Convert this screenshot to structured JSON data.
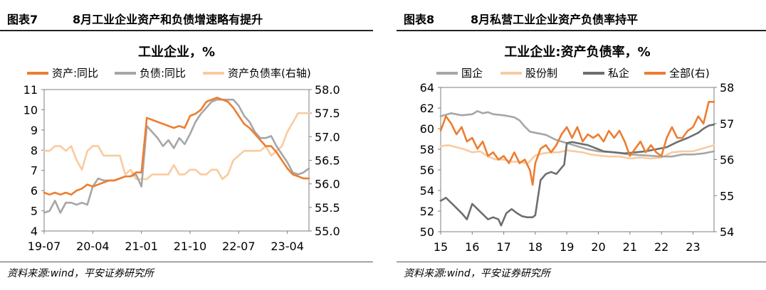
{
  "charts": [
    {
      "figure_label": "图表7",
      "header_title": "8月工业企业资产和负债增速略有提升",
      "source": "资料来源:wind，平安证券研究所",
      "chart_data": {
        "type": "line",
        "title": "工业企业，%",
        "legend": [
          {
            "name": "资产:同比",
            "color": "#ED7D31"
          },
          {
            "name": "负债:同比",
            "color": "#A6A6A6"
          },
          {
            "name": "资产负债率(右轴)",
            "color": "#F8CBA0"
          }
        ],
        "legend_placement": "top",
        "ylim": [
          4,
          11
        ],
        "y_ticks": [
          "4",
          "5",
          "6",
          "7",
          "8",
          "9",
          "10",
          "11"
        ],
        "y2lim": [
          55.0,
          58.0
        ],
        "y2_ticks": [
          "55.0",
          "55.5",
          "56.0",
          "56.5",
          "57.0",
          "57.5",
          "58.0"
        ],
        "x_tick_labels": [
          "19-07",
          "20-04",
          "21-01",
          "21-10",
          "22-07",
          "23-04"
        ],
        "x_tick_indices": [
          0,
          9,
          18,
          27,
          36,
          45
        ],
        "x_range": [
          0,
          49
        ],
        "grid": false,
        "series": [
          {
            "name": "资产:同比",
            "axis": "left",
            "color": "#ED7D31",
            "values": [
              5.9,
              5.8,
              5.9,
              5.8,
              5.9,
              5.8,
              6.0,
              6.1,
              6.3,
              6.2,
              6.3,
              6.4,
              6.5,
              6.5,
              6.6,
              6.7,
              6.7,
              6.9,
              6.9,
              9.6,
              9.5,
              9.4,
              9.3,
              9.2,
              9.1,
              9.2,
              9.1,
              9.7,
              9.8,
              10.0,
              10.4,
              10.5,
              10.6,
              10.5,
              10.4,
              10.1,
              9.7,
              9.3,
              9.1,
              8.8,
              8.5,
              8.2,
              8.2,
              7.9,
              7.5,
              7.1,
              6.8,
              6.7,
              6.6,
              6.6
            ]
          },
          {
            "name": "负债:同比",
            "axis": "left",
            "color": "#A6A6A6",
            "values": [
              4.9,
              5.0,
              5.5,
              4.9,
              5.4,
              5.4,
              5.3,
              5.4,
              5.3,
              6.2,
              6.6,
              6.5,
              6.5,
              6.5,
              6.6,
              6.7,
              6.7,
              6.8,
              6.2,
              9.2,
              8.9,
              8.6,
              8.2,
              8.5,
              8.1,
              8.6,
              8.3,
              8.8,
              9.4,
              9.8,
              10.1,
              10.4,
              10.5,
              10.5,
              10.5,
              10.5,
              10.2,
              9.7,
              9.4,
              8.9,
              8.6,
              8.6,
              8.7,
              8.2,
              7.8,
              7.4,
              6.9,
              6.8,
              6.9,
              7.1
            ]
          },
          {
            "name": "资产负债率(右轴)",
            "axis": "right",
            "color": "#F8CBA0",
            "values": [
              56.7,
              56.7,
              56.8,
              56.8,
              56.7,
              56.8,
              56.5,
              56.3,
              56.7,
              56.8,
              56.8,
              56.6,
              56.6,
              56.6,
              56.6,
              56.2,
              56.3,
              56.1,
              56.1,
              56.1,
              56.2,
              56.2,
              56.2,
              56.2,
              56.4,
              56.2,
              56.2,
              56.3,
              56.3,
              56.2,
              56.2,
              56.3,
              56.3,
              56.1,
              56.2,
              56.5,
              56.6,
              56.7,
              56.7,
              56.7,
              56.7,
              56.8,
              56.6,
              56.7,
              56.8,
              57.1,
              57.3,
              57.5,
              57.5,
              57.5
            ]
          }
        ]
      }
    },
    {
      "figure_label": "图表8",
      "header_title": "8月私营工业企业资产负债率持平",
      "source": "资料来源:wind，平安证券研究所",
      "chart_data": {
        "type": "line",
        "title": "工业企业:资产负债率，%",
        "legend": [
          {
            "name": "国企",
            "color": "#A6A6A6"
          },
          {
            "name": "股份制",
            "color": "#F8CBA0"
          },
          {
            "name": "私企",
            "color": "#6E6E6E"
          },
          {
            "name": "全部(右)",
            "color": "#ED7D31"
          }
        ],
        "legend_placement": "top",
        "ylim": [
          50,
          64
        ],
        "y_ticks": [
          "50",
          "52",
          "54",
          "56",
          "58",
          "60",
          "62",
          "64"
        ],
        "y2lim": [
          54,
          58
        ],
        "y2_ticks": [
          "54",
          "55",
          "56",
          "57",
          "58"
        ],
        "x_tick_labels": [
          "15",
          "16",
          "17",
          "18",
          "19",
          "20",
          "21",
          "22",
          "23"
        ],
        "x_tick_indices": [
          0,
          12,
          24,
          36,
          48,
          60,
          72,
          84,
          96
        ],
        "x_range": [
          0,
          104
        ],
        "grid": false,
        "series": [
          {
            "name": "国企",
            "axis": "left",
            "color": "#A6A6A6",
            "values": [
              [
                0,
                61.2
              ],
              [
                4,
                61.5
              ],
              [
                8,
                61.3
              ],
              [
                12,
                61.4
              ],
              [
                14,
                61.7
              ],
              [
                16,
                61.5
              ],
              [
                18,
                61.6
              ],
              [
                20,
                61.4
              ],
              [
                24,
                61.3
              ],
              [
                28,
                61.1
              ],
              [
                30,
                60.8
              ],
              [
                32,
                60.2
              ],
              [
                34,
                59.7
              ],
              [
                36,
                59.6
              ],
              [
                40,
                59.4
              ],
              [
                44,
                58.9
              ],
              [
                48,
                58.6
              ],
              [
                52,
                58.3
              ],
              [
                56,
                58.0
              ],
              [
                60,
                57.8
              ],
              [
                66,
                57.7
              ],
              [
                72,
                57.5
              ],
              [
                78,
                57.4
              ],
              [
                84,
                57.3
              ],
              [
                88,
                57.3
              ],
              [
                92,
                57.5
              ],
              [
                96,
                57.5
              ],
              [
                100,
                57.6
              ],
              [
                104,
                57.8
              ]
            ]
          },
          {
            "name": "股份制",
            "axis": "left",
            "color": "#F8CBA0",
            "values": [
              [
                0,
                58.3
              ],
              [
                3,
                58.4
              ],
              [
                6,
                58.2
              ],
              [
                9,
                58.0
              ],
              [
                12,
                57.7
              ],
              [
                15,
                57.8
              ],
              [
                18,
                57.3
              ],
              [
                21,
                57.0
              ],
              [
                24,
                57.0
              ],
              [
                27,
                56.8
              ],
              [
                30,
                56.8
              ],
              [
                33,
                56.6
              ],
              [
                36,
                57.4
              ],
              [
                39,
                57.6
              ],
              [
                42,
                57.7
              ],
              [
                45,
                57.7
              ],
              [
                48,
                57.9
              ],
              [
                51,
                57.8
              ],
              [
                54,
                57.7
              ],
              [
                57,
                57.5
              ],
              [
                60,
                57.4
              ],
              [
                64,
                57.3
              ],
              [
                68,
                57.3
              ],
              [
                72,
                57.1
              ],
              [
                76,
                57.2
              ],
              [
                80,
                57.1
              ],
              [
                84,
                57.2
              ],
              [
                88,
                57.7
              ],
              [
                92,
                57.8
              ],
              [
                96,
                57.8
              ],
              [
                100,
                58.1
              ],
              [
                104,
                58.4
              ]
            ]
          },
          {
            "name": "私企",
            "axis": "left",
            "color": "#6E6E6E",
            "values": [
              [
                0,
                53.0
              ],
              [
                2,
                53.3
              ],
              [
                4,
                52.8
              ],
              [
                6,
                52.3
              ],
              [
                8,
                51.8
              ],
              [
                10,
                51.2
              ],
              [
                12,
                52.7
              ],
              [
                14,
                52.2
              ],
              [
                16,
                51.7
              ],
              [
                18,
                51.2
              ],
              [
                20,
                51.4
              ],
              [
                22,
                51.2
              ],
              [
                23,
                50.6
              ],
              [
                25,
                51.8
              ],
              [
                27,
                52.2
              ],
              [
                29,
                51.8
              ],
              [
                31,
                51.5
              ],
              [
                33,
                51.4
              ],
              [
                35,
                51.4
              ],
              [
                36,
                51.6
              ],
              [
                38,
                55.0
              ],
              [
                40,
                55.6
              ],
              [
                42,
                55.8
              ],
              [
                44,
                55.6
              ],
              [
                46,
                56.2
              ],
              [
                47,
                56.5
              ],
              [
                48,
                58.6
              ],
              [
                50,
                58.7
              ],
              [
                52,
                58.6
              ],
              [
                54,
                58.5
              ],
              [
                56,
                58.4
              ],
              [
                58,
                58.2
              ],
              [
                60,
                58.0
              ],
              [
                62,
                57.8
              ],
              [
                66,
                57.7
              ],
              [
                70,
                57.6
              ],
              [
                74,
                57.7
              ],
              [
                78,
                57.8
              ],
              [
                82,
                58.0
              ],
              [
                86,
                58.2
              ],
              [
                90,
                58.7
              ],
              [
                94,
                59.1
              ],
              [
                98,
                59.6
              ],
              [
                100,
                60.0
              ],
              [
                102,
                60.3
              ],
              [
                104,
                60.4
              ]
            ]
          },
          {
            "name": "全部(右)",
            "axis": "right",
            "color": "#ED7D31",
            "values": [
              [
                0,
                56.8
              ],
              [
                2,
                57.2
              ],
              [
                4,
                57.0
              ],
              [
                6,
                56.7
              ],
              [
                8,
                56.9
              ],
              [
                10,
                56.5
              ],
              [
                12,
                56.6
              ],
              [
                14,
                56.3
              ],
              [
                16,
                56.5
              ],
              [
                18,
                56.1
              ],
              [
                20,
                56.2
              ],
              [
                22,
                56.0
              ],
              [
                24,
                56.1
              ],
              [
                26,
                55.9
              ],
              [
                28,
                56.2
              ],
              [
                30,
                55.9
              ],
              [
                32,
                56.0
              ],
              [
                34,
                55.7
              ],
              [
                35,
                55.3
              ],
              [
                36,
                55.9
              ],
              [
                38,
                56.3
              ],
              [
                40,
                56.4
              ],
              [
                42,
                56.2
              ],
              [
                44,
                56.4
              ],
              [
                46,
                56.7
              ],
              [
                48,
                56.9
              ],
              [
                50,
                56.6
              ],
              [
                52,
                56.9
              ],
              [
                54,
                56.5
              ],
              [
                56,
                56.7
              ],
              [
                58,
                56.6
              ],
              [
                60,
                56.7
              ],
              [
                62,
                56.5
              ],
              [
                64,
                56.8
              ],
              [
                66,
                56.6
              ],
              [
                68,
                56.8
              ],
              [
                70,
                56.5
              ],
              [
                72,
                56.1
              ],
              [
                74,
                56.3
              ],
              [
                76,
                56.5
              ],
              [
                78,
                56.2
              ],
              [
                80,
                56.4
              ],
              [
                82,
                56.2
              ],
              [
                84,
                56.1
              ],
              [
                86,
                56.6
              ],
              [
                88,
                56.9
              ],
              [
                90,
                56.6
              ],
              [
                92,
                56.6
              ],
              [
                94,
                56.8
              ],
              [
                96,
                56.9
              ],
              [
                98,
                57.2
              ],
              [
                100,
                57.0
              ],
              [
                102,
                57.6
              ],
              [
                104,
                57.6
              ]
            ]
          }
        ]
      }
    }
  ]
}
